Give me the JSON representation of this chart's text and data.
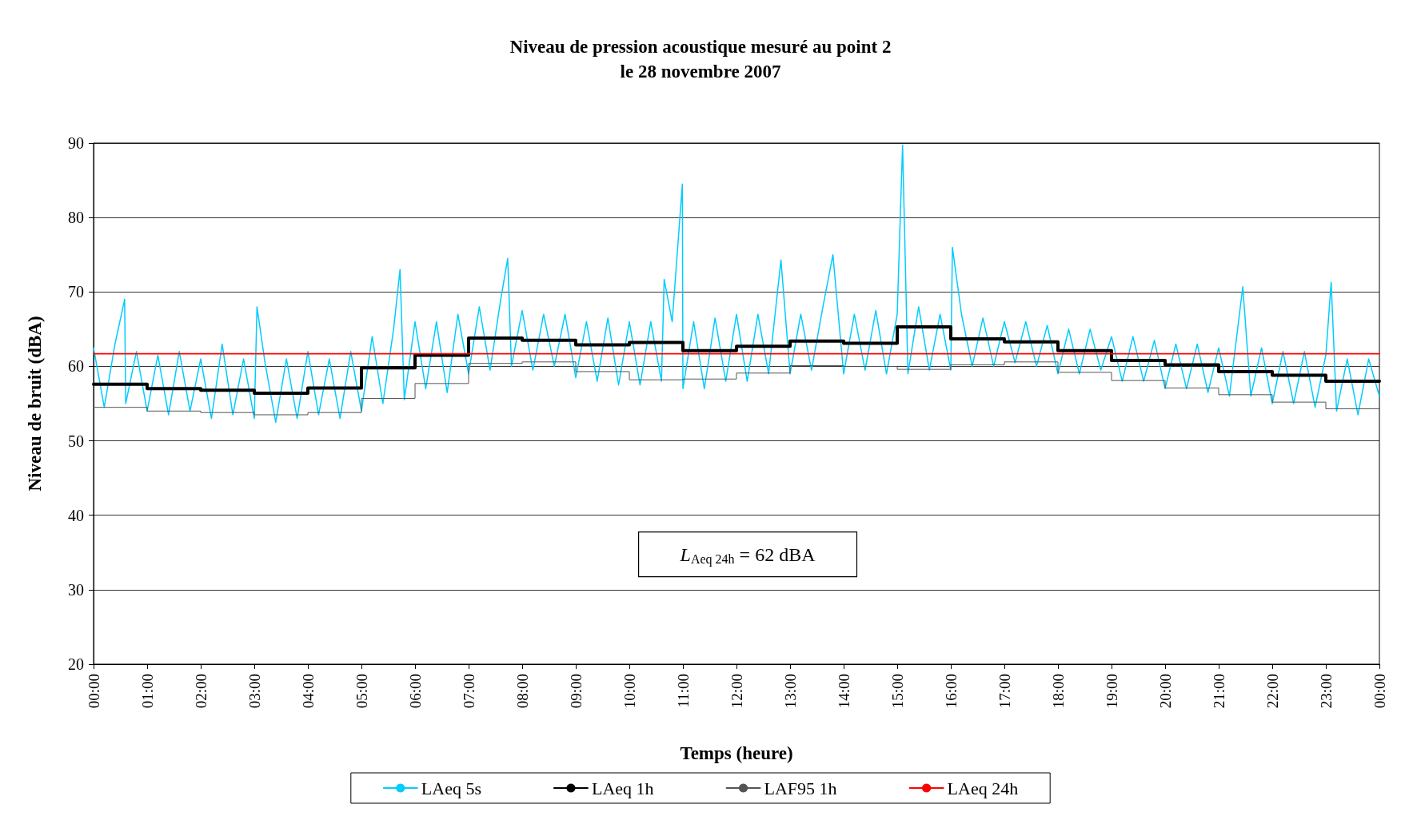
{
  "chart_data": {
    "type": "line",
    "title": "Niveau de pression acoustique mesuré au point 2",
    "subtitle": "le 28 novembre 2007",
    "xlabel": "Temps (heure)",
    "ylabel": "Niveau de bruit (dBA)",
    "annotations": [
      "L$_{Aeq 24h}$ = 62 dBA"
    ],
    "xlim": [
      0,
      24
    ],
    "xticks": [
      {
        "value": 0,
        "label": "00:00"
      },
      {
        "value": 1,
        "label": "01:00"
      },
      {
        "value": 2,
        "label": "02:00"
      },
      {
        "value": 3,
        "label": "03:00"
      },
      {
        "value": 4,
        "label": "04:00"
      },
      {
        "value": 5,
        "label": "05:00"
      },
      {
        "value": 6,
        "label": "06:00"
      },
      {
        "value": 7,
        "label": "07:00"
      },
      {
        "value": 8,
        "label": "08:00"
      },
      {
        "value": 9,
        "label": "09:00"
      },
      {
        "value": 10,
        "label": "10:00"
      },
      {
        "value": 11,
        "label": "11:00"
      },
      {
        "value": 12,
        "label": "12:00"
      },
      {
        "value": 13,
        "label": "13:00"
      },
      {
        "value": 14,
        "label": "14:00"
      },
      {
        "value": 15,
        "label": "15:00"
      },
      {
        "value": 16,
        "label": "16:00"
      },
      {
        "value": 17,
        "label": "17:00"
      },
      {
        "value": 18,
        "label": "18:00"
      },
      {
        "value": 19,
        "label": "19:00"
      },
      {
        "value": 20,
        "label": "20:00"
      },
      {
        "value": 21,
        "label": "21:00"
      },
      {
        "value": 22,
        "label": "22:00"
      },
      {
        "value": 23,
        "label": "23:00"
      },
      {
        "value": 24,
        "label": "00:00"
      }
    ],
    "ylim": [
      20,
      90
    ],
    "yticks": [
      20,
      30,
      40,
      50,
      60,
      70,
      80,
      90
    ],
    "grid": "y",
    "legend": "bottom",
    "marker": "none",
    "series": [
      {
        "name": "LAeq 5s",
        "color": "#00ccff",
        "x": [
          0,
          0.2,
          0.4,
          0.58,
          0.6,
          0.8,
          1.0,
          1.2,
          1.4,
          1.6,
          1.8,
          2.0,
          2.2,
          2.4,
          2.6,
          2.8,
          3.0,
          3.05,
          3.2,
          3.4,
          3.6,
          3.8,
          4.0,
          4.2,
          4.4,
          4.6,
          4.8,
          5.0,
          5.2,
          5.4,
          5.6,
          5.72,
          5.8,
          6.0,
          6.2,
          6.4,
          6.6,
          6.8,
          7.0,
          7.2,
          7.4,
          7.6,
          7.73,
          7.8,
          8.0,
          8.2,
          8.4,
          8.6,
          8.8,
          9.0,
          9.2,
          9.4,
          9.6,
          9.8,
          10.0,
          10.2,
          10.4,
          10.6,
          10.65,
          10.8,
          10.99,
          11.0,
          11.2,
          11.4,
          11.6,
          11.8,
          12.0,
          12.2,
          12.4,
          12.6,
          12.83,
          13.0,
          13.2,
          13.4,
          13.6,
          13.8,
          14.0,
          14.2,
          14.4,
          14.6,
          14.8,
          15.0,
          15.1,
          15.2,
          15.4,
          15.6,
          15.8,
          16.0,
          16.03,
          16.2,
          16.4,
          16.6,
          16.8,
          17.0,
          17.2,
          17.4,
          17.6,
          17.8,
          18.0,
          18.2,
          18.4,
          18.6,
          18.8,
          19.0,
          19.2,
          19.4,
          19.6,
          19.8,
          20.0,
          20.2,
          20.4,
          20.6,
          20.8,
          21.0,
          21.2,
          21.45,
          21.6,
          21.8,
          22.0,
          22.2,
          22.4,
          22.6,
          22.8,
          23.0,
          23.1,
          23.2,
          23.4,
          23.6,
          23.8,
          24.0
        ],
        "values": [
          62.5,
          54.5,
          63,
          69,
          55,
          62,
          54,
          61.5,
          53.5,
          62,
          54,
          61,
          53,
          63,
          53.5,
          61,
          53,
          68,
          60.5,
          52.5,
          61,
          53,
          62,
          53.5,
          61,
          53,
          62,
          54,
          64,
          55,
          65,
          73,
          55.5,
          66,
          57,
          66,
          56.5,
          67,
          59,
          68,
          59.5,
          69,
          74.5,
          60,
          67.5,
          59.5,
          67,
          60,
          67,
          58.5,
          66,
          58,
          66.5,
          57.5,
          66,
          57.5,
          66,
          58,
          71.7,
          66,
          84.5,
          57,
          66,
          57,
          66.5,
          58,
          67,
          58,
          67,
          59,
          74.3,
          59,
          67,
          59.5,
          67.5,
          75,
          59,
          67,
          59.5,
          67.5,
          59,
          67,
          89.7,
          59,
          68,
          59.5,
          67,
          59.5,
          76,
          67,
          60,
          66.5,
          60,
          66,
          60.5,
          66,
          60,
          65.5,
          59,
          65,
          59,
          65,
          59.5,
          64,
          58,
          64,
          58,
          63.5,
          57,
          63,
          57,
          63,
          56.5,
          62.5,
          56,
          70.7,
          56,
          62.5,
          55,
          62,
          55,
          62,
          54.5,
          61.5,
          71.3,
          54,
          61,
          53.5,
          61,
          56
        ]
      },
      {
        "name": "LAeq 1h",
        "color": "#000000",
        "type": "step",
        "x": [
          0,
          1,
          2,
          3,
          4,
          5,
          6,
          7,
          8,
          9,
          10,
          11,
          12,
          13,
          14,
          15,
          16,
          17,
          18,
          19,
          20,
          21,
          22,
          23,
          24
        ],
        "values": [
          57.6,
          57.0,
          56.8,
          56.4,
          57.1,
          59.8,
          61.5,
          63.8,
          63.5,
          62.9,
          63.2,
          62.1,
          62.7,
          63.4,
          63.1,
          65.3,
          63.7,
          63.3,
          62.1,
          60.8,
          60.2,
          59.3,
          58.8,
          58.0,
          58.0
        ]
      },
      {
        "name": "LAF95 1h",
        "color": "#555555",
        "type": "step",
        "x": [
          0,
          1,
          2,
          3,
          4,
          5,
          6,
          7,
          8,
          9,
          10,
          11,
          12,
          13,
          14,
          15,
          16,
          17,
          18,
          19,
          20,
          21,
          22,
          23,
          24
        ],
        "values": [
          54.5,
          54.0,
          53.8,
          53.5,
          53.8,
          55.7,
          57.7,
          60.4,
          60.6,
          59.3,
          58.2,
          58.3,
          59.1,
          60.1,
          60.0,
          59.6,
          60.2,
          60.6,
          59.2,
          58.1,
          57.1,
          56.2,
          55.2,
          54.3,
          54.3
        ]
      },
      {
        "name": "LAeq 24h",
        "color": "#ff0000",
        "x": [
          0,
          24
        ],
        "values": [
          61.7,
          61.7
        ]
      }
    ]
  }
}
